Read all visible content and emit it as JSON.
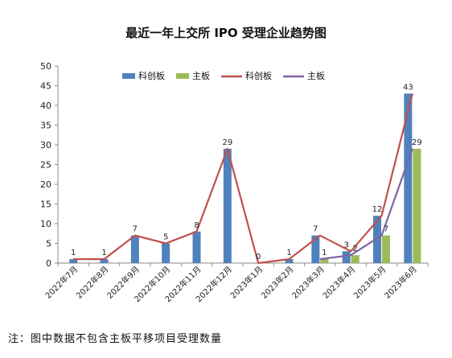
{
  "chart_data": {
    "type": "bar",
    "title": "最近一年上交所 IPO 受理企业趋势图",
    "categories": [
      "2022年7月",
      "2022年8月",
      "2022年9月",
      "2022年10月",
      "2022年11月",
      "2022年12月",
      "2023年1月",
      "2023年2月",
      "2023年3月",
      "2023年4月",
      "2023年5月",
      "2023年6月"
    ],
    "series": [
      {
        "name": "科创板",
        "kind": "bar",
        "values": [
          1,
          1,
          7,
          5,
          8,
          29,
          0,
          1,
          7,
          3,
          12,
          43
        ],
        "labels": [
          "1",
          "1",
          "7",
          "5",
          "8",
          "29",
          "0",
          "1",
          "7",
          "3",
          "12",
          "43"
        ],
        "color": "#4f81bd"
      },
      {
        "name": "主板",
        "kind": "bar",
        "values": [
          null,
          null,
          null,
          null,
          null,
          null,
          null,
          null,
          1,
          2,
          7,
          29
        ],
        "labels": [
          "",
          "",
          "",
          "",
          "",
          "",
          "",
          "",
          "1",
          "2",
          "7",
          "29"
        ],
        "color": "#9bbb59"
      },
      {
        "name": "科创板",
        "kind": "line",
        "values": [
          1,
          1,
          7,
          5,
          8,
          29,
          0,
          1,
          7,
          3,
          12,
          43
        ],
        "color": "#c0504d"
      },
      {
        "name": "主板",
        "kind": "line",
        "values": [
          null,
          null,
          null,
          null,
          null,
          null,
          null,
          null,
          1,
          2,
          7,
          29
        ],
        "color": "#8064a2"
      }
    ],
    "yticks": [
      "0",
      "5",
      "10",
      "15",
      "20",
      "25",
      "30",
      "35",
      "40",
      "45",
      "50"
    ],
    "ylim": [
      0,
      50
    ],
    "legend_position": "top-center",
    "grid": false
  },
  "note": "注：图中数据不包含主板平移项目受理数量"
}
